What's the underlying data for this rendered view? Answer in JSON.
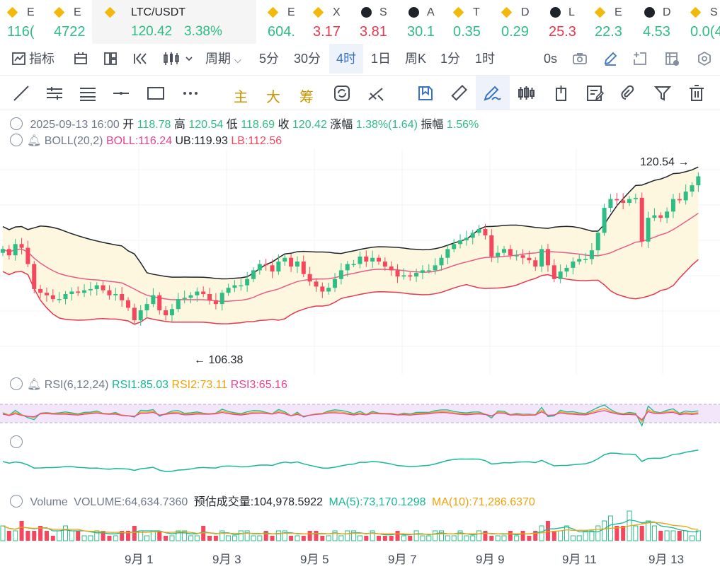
{
  "tickers": [
    {
      "symbol": "E",
      "price": "116(",
      "icon": "binance-icon",
      "trend": "up"
    },
    {
      "symbol": "E",
      "price": "4722",
      "icon": "binance-icon",
      "trend": "up"
    },
    {
      "symbol": "LTC/USDT",
      "price": "120.42",
      "change": "3.38%",
      "icon": "binance-icon",
      "trend": "up",
      "active": true
    },
    {
      "symbol": "E",
      "price": "604.",
      "icon": "binance-icon",
      "trend": "up"
    },
    {
      "symbol": "X",
      "price": "3.17",
      "icon": "binance-icon",
      "trend": "down"
    },
    {
      "symbol": "S",
      "price": "3.81",
      "icon": "crossed-circle-icon",
      "trend": "down"
    },
    {
      "symbol": "A",
      "price": "30.1",
      "icon": "crossed-circle-icon",
      "trend": "up"
    },
    {
      "symbol": "T",
      "price": "0.35",
      "icon": "binance-icon",
      "trend": "up"
    },
    {
      "symbol": "D",
      "price": "0.29",
      "icon": "binance-icon",
      "trend": "up"
    },
    {
      "symbol": "L",
      "price": "25.3",
      "icon": "crossed-circle-icon",
      "trend": "down"
    },
    {
      "symbol": "E",
      "price": "22.3",
      "icon": "binance-icon",
      "trend": "up"
    },
    {
      "symbol": "D",
      "price": "4.53",
      "icon": "crossed-circle-icon",
      "trend": "up"
    },
    {
      "symbol": "S",
      "price": "0.0(4",
      "icon": "binance-icon",
      "trend": "up"
    }
  ],
  "toolbar": {
    "indicators": "指标",
    "period": "周期",
    "intervals": [
      "5分",
      "30分",
      "4时",
      "1日",
      "周K",
      "1分",
      "1时"
    ],
    "selected_interval": "4时",
    "countdown": "0s"
  },
  "drawing_tools": {
    "main": "主",
    "big": "大",
    "chip": "筹"
  },
  "ohlc": {
    "date": "2025-09-13 16:00",
    "open_label": "开",
    "open": "118.78",
    "high_label": "高",
    "high": "120.54",
    "low_label": "低",
    "low": "118.69",
    "close_label": "收",
    "close": "120.42",
    "change_label": "涨幅",
    "change": "1.38%(1.64)",
    "amplitude_label": "振幅",
    "amplitude": "1.56%"
  },
  "boll": {
    "name": "BOLL(20,2)",
    "boll": "BOLL:116.24",
    "ub": "UB:119.93",
    "lb": "LB:112.56"
  },
  "rsi": {
    "name": "RSI(6,12,24)",
    "rsi1": "RSI1:85.03",
    "rsi2": "RSI2:73.11",
    "rsi3": "RSI3:65.16"
  },
  "volume": {
    "name": "Volume",
    "value": "VOLUME:64,634.7360",
    "est_label": "预估成交量:",
    "est": "104,978.5922",
    "ma5": "MA(5):73,170.1298",
    "ma10": "MA(10):71,286.6370"
  },
  "chart_data": {
    "type": "candlestick",
    "high_marker": "120.54",
    "low_marker": "106.38",
    "x_ticks": [
      "9月 1",
      "9月 3",
      "9月 5",
      "9月 7",
      "9月 9",
      "9月 11",
      "9月 13"
    ],
    "candles_close": [
      114.6,
      114.1,
      115.0,
      114.7,
      113.4,
      111.4,
      111.1,
      110.9,
      110.6,
      110.6,
      111.0,
      111.2,
      111.1,
      111.3,
      111.4,
      111.7,
      111.3,
      110.9,
      111.0,
      110.5,
      109.9,
      108.9,
      109.7,
      110.2,
      110.9,
      109.7,
      109.3,
      109.8,
      110.6,
      110.7,
      110.9,
      111.2,
      111.0,
      110.5,
      110.2,
      111.1,
      111.5,
      111.7,
      111.7,
      112.2,
      112.9,
      113.4,
      113.3,
      112.8,
      113.6,
      113.9,
      113.2,
      113.6,
      112.6,
      112.0,
      111.6,
      111.2,
      111.5,
      112.2,
      112.9,
      113.4,
      113.4,
      114.0,
      113.6,
      113.9,
      113.6,
      113.2,
      112.9,
      112.4,
      112.5,
      112.4,
      112.7,
      112.9,
      112.9,
      113.3,
      113.9,
      114.6,
      115.0,
      115.3,
      115.5,
      115.9,
      116.2,
      115.7,
      114.0,
      114.3,
      114.6,
      114.1,
      114.1,
      113.9,
      113.7,
      113.2,
      114.6,
      113.3,
      112.2,
      112.8,
      113.1,
      113.6,
      113.8,
      113.8,
      114.5,
      115.9,
      117.9,
      118.6,
      118.5,
      118.3,
      118.6,
      118.7,
      115.2,
      117.1,
      117.3,
      117.1,
      117.6,
      118.6,
      118.5,
      119.2,
      119.7,
      120.42
    ],
    "volume_series": [
      3,
      2,
      2,
      4,
      2,
      2,
      3,
      2,
      1,
      2,
      3,
      2,
      2,
      1,
      1,
      2,
      2,
      1,
      1,
      2,
      2,
      3,
      2,
      1,
      2,
      2,
      1,
      1,
      2,
      2,
      1,
      1,
      3,
      1,
      1,
      2,
      1,
      1,
      2,
      2,
      1,
      1,
      2,
      1,
      2,
      2,
      1,
      1,
      1,
      2,
      2,
      1,
      1,
      2,
      1,
      2,
      2,
      1,
      1,
      2,
      1,
      1,
      1,
      2,
      1,
      1,
      2,
      1,
      1,
      2,
      2,
      1,
      1,
      2,
      1,
      1,
      2,
      2,
      1,
      1,
      1,
      2,
      1,
      2,
      1,
      2,
      3,
      4,
      2,
      2,
      3,
      1,
      1,
      2,
      2,
      3,
      4,
      5,
      3,
      3,
      6,
      3,
      3,
      4,
      3,
      2,
      2,
      2,
      2,
      2,
      1,
      2
    ]
  }
}
